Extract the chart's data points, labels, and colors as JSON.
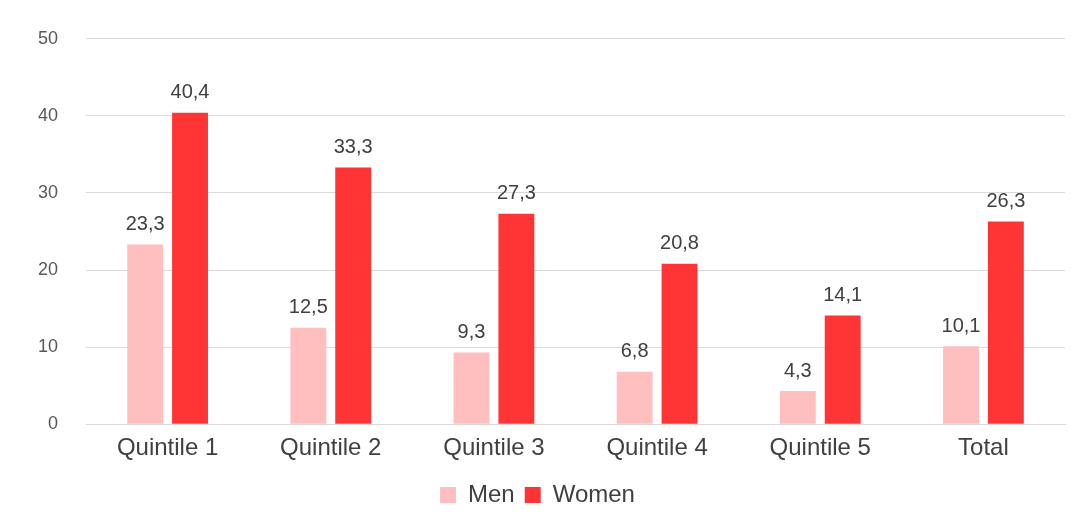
{
  "chart_data": {
    "type": "bar",
    "categories": [
      "Quintile 1",
      "Quintile 2",
      "Quintile 3",
      "Quintile 4",
      "Quintile 5",
      "Total"
    ],
    "series": [
      {
        "name": "Men",
        "color": "#ffbfbf",
        "values": [
          23.3,
          12.5,
          9.3,
          6.8,
          4.3,
          10.1
        ],
        "value_labels": [
          "23,3",
          "12,5",
          "9,3",
          "6,8",
          "4,3",
          "10,1"
        ]
      },
      {
        "name": "Women",
        "color": "#ff3535",
        "values": [
          40.4,
          33.3,
          27.3,
          20.8,
          14.1,
          26.3
        ],
        "value_labels": [
          "40,4",
          "33,3",
          "27,3",
          "20,8",
          "14,1",
          "26,3"
        ]
      }
    ],
    "ylim": [
      0,
      50
    ],
    "yticks": [
      0,
      10,
      20,
      30,
      40,
      50
    ],
    "grid": "y",
    "legend": "bottom"
  }
}
